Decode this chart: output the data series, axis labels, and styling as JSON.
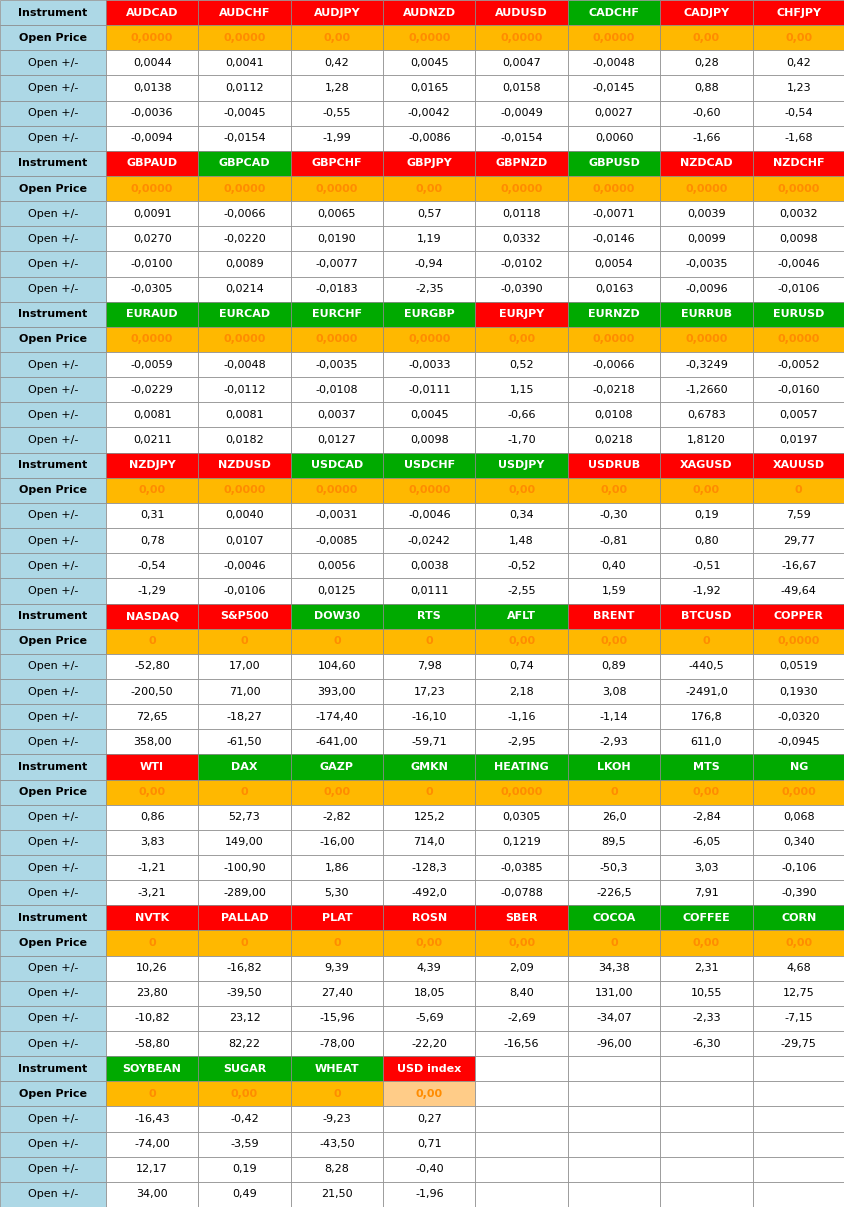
{
  "rows": [
    [
      "Instrument",
      "AUDCAD",
      "AUDCHF",
      "AUDJPY",
      "AUDNZD",
      "AUDUSD",
      "CADCHF",
      "CADJPY",
      "CHFJPY"
    ],
    [
      "Open Price",
      "0,0000",
      "0,0000",
      "0,00",
      "0,0000",
      "0,0000",
      "0,0000",
      "0,00",
      "0,00"
    ],
    [
      "Open +/-",
      "0,0044",
      "0,0041",
      "0,42",
      "0,0045",
      "0,0047",
      "-0,0048",
      "0,28",
      "0,42"
    ],
    [
      "Open +/-",
      "0,0138",
      "0,0112",
      "1,28",
      "0,0165",
      "0,0158",
      "-0,0145",
      "0,88",
      "1,23"
    ],
    [
      "Open +/-",
      "-0,0036",
      "-0,0045",
      "-0,55",
      "-0,0042",
      "-0,0049",
      "0,0027",
      "-0,60",
      "-0,54"
    ],
    [
      "Open +/-",
      "-0,0094",
      "-0,0154",
      "-1,99",
      "-0,0086",
      "-0,0154",
      "0,0060",
      "-1,66",
      "-1,68"
    ],
    [
      "Instrument",
      "GBPAUD",
      "GBPCAD",
      "GBPCHF",
      "GBPJPY",
      "GBPNZD",
      "GBPUSD",
      "NZDCAD",
      "NZDCHF"
    ],
    [
      "Open Price",
      "0,0000",
      "0,0000",
      "0,0000",
      "0,00",
      "0,0000",
      "0,0000",
      "0,0000",
      "0,0000"
    ],
    [
      "Open +/-",
      "0,0091",
      "-0,0066",
      "0,0065",
      "0,57",
      "0,0118",
      "-0,0071",
      "0,0039",
      "0,0032"
    ],
    [
      "Open +/-",
      "0,0270",
      "-0,0220",
      "0,0190",
      "1,19",
      "0,0332",
      "-0,0146",
      "0,0099",
      "0,0098"
    ],
    [
      "Open +/-",
      "-0,0100",
      "0,0089",
      "-0,0077",
      "-0,94",
      "-0,0102",
      "0,0054",
      "-0,0035",
      "-0,0046"
    ],
    [
      "Open +/-",
      "-0,0305",
      "0,0214",
      "-0,0183",
      "-2,35",
      "-0,0390",
      "0,0163",
      "-0,0096",
      "-0,0106"
    ],
    [
      "Instrument",
      "EURAUD",
      "EURCAD",
      "EURCHF",
      "EURGBP",
      "EURJPY",
      "EURNZD",
      "EURRUB",
      "EURUSD"
    ],
    [
      "Open Price",
      "0,0000",
      "0,0000",
      "0,0000",
      "0,0000",
      "0,00",
      "0,0000",
      "0,0000",
      "0,0000"
    ],
    [
      "Open +/-",
      "-0,0059",
      "-0,0048",
      "-0,0035",
      "-0,0033",
      "0,52",
      "-0,0066",
      "-0,3249",
      "-0,0052"
    ],
    [
      "Open +/-",
      "-0,0229",
      "-0,0112",
      "-0,0108",
      "-0,0111",
      "1,15",
      "-0,0218",
      "-1,2660",
      "-0,0160"
    ],
    [
      "Open +/-",
      "0,0081",
      "0,0081",
      "0,0037",
      "0,0045",
      "-0,66",
      "0,0108",
      "0,6783",
      "0,0057"
    ],
    [
      "Open +/-",
      "0,0211",
      "0,0182",
      "0,0127",
      "0,0098",
      "-1,70",
      "0,0218",
      "1,8120",
      "0,0197"
    ],
    [
      "Instrument",
      "NZDJPY",
      "NZDUSD",
      "USDCAD",
      "USDCHF",
      "USDJPY",
      "USDRUB",
      "XAGUSD",
      "XAUUSD"
    ],
    [
      "Open Price",
      "0,00",
      "0,0000",
      "0,0000",
      "0,0000",
      "0,00",
      "0,00",
      "0,00",
      "0"
    ],
    [
      "Open +/-",
      "0,31",
      "0,0040",
      "-0,0031",
      "-0,0046",
      "0,34",
      "-0,30",
      "0,19",
      "7,59"
    ],
    [
      "Open +/-",
      "0,78",
      "0,0107",
      "-0,0085",
      "-0,0242",
      "1,48",
      "-0,81",
      "0,80",
      "29,77"
    ],
    [
      "Open +/-",
      "-0,54",
      "-0,0046",
      "0,0056",
      "0,0038",
      "-0,52",
      "0,40",
      "-0,51",
      "-16,67"
    ],
    [
      "Open +/-",
      "-1,29",
      "-0,0106",
      "0,0125",
      "0,0111",
      "-2,55",
      "1,59",
      "-1,92",
      "-49,64"
    ],
    [
      "Instrument",
      "NASDAQ",
      "S&P500",
      "DOW30",
      "RTS",
      "AFLT",
      "BRENT",
      "BTCUSD",
      "COPPER"
    ],
    [
      "Open Price",
      "0",
      "0",
      "0",
      "0",
      "0,00",
      "0,00",
      "0",
      "0,0000"
    ],
    [
      "Open +/-",
      "-52,80",
      "17,00",
      "104,60",
      "7,98",
      "0,74",
      "0,89",
      "-440,5",
      "0,0519"
    ],
    [
      "Open +/-",
      "-200,50",
      "71,00",
      "393,00",
      "17,23",
      "2,18",
      "3,08",
      "-2491,0",
      "0,1930"
    ],
    [
      "Open +/-",
      "72,65",
      "-18,27",
      "-174,40",
      "-16,10",
      "-1,16",
      "-1,14",
      "176,8",
      "-0,0320"
    ],
    [
      "Open +/-",
      "358,00",
      "-61,50",
      "-641,00",
      "-59,71",
      "-2,95",
      "-2,93",
      "611,0",
      "-0,0945"
    ],
    [
      "Instrument",
      "WTI",
      "DAX",
      "GAZP",
      "GMKN",
      "HEATING",
      "LKOH",
      "MTS",
      "NG"
    ],
    [
      "Open Price",
      "0,00",
      "0",
      "0,00",
      "0",
      "0,0000",
      "0",
      "0,00",
      "0,000"
    ],
    [
      "Open +/-",
      "0,86",
      "52,73",
      "-2,82",
      "125,2",
      "0,0305",
      "26,0",
      "-2,84",
      "0,068"
    ],
    [
      "Open +/-",
      "3,83",
      "149,00",
      "-16,00",
      "714,0",
      "0,1219",
      "89,5",
      "-6,05",
      "0,340"
    ],
    [
      "Open +/-",
      "-1,21",
      "-100,90",
      "1,86",
      "-128,3",
      "-0,0385",
      "-50,3",
      "3,03",
      "-0,106"
    ],
    [
      "Open +/-",
      "-3,21",
      "-289,00",
      "5,30",
      "-492,0",
      "-0,0788",
      "-226,5",
      "7,91",
      "-0,390"
    ],
    [
      "Instrument",
      "NVTK",
      "PALLAD",
      "PLAT",
      "ROSN",
      "SBER",
      "COCOA",
      "COFFEE",
      "CORN"
    ],
    [
      "Open Price",
      "0",
      "0",
      "0",
      "0,00",
      "0,00",
      "0",
      "0,00",
      "0,00"
    ],
    [
      "Open +/-",
      "10,26",
      "-16,82",
      "9,39",
      "4,39",
      "2,09",
      "34,38",
      "2,31",
      "4,68"
    ],
    [
      "Open +/-",
      "23,80",
      "-39,50",
      "27,40",
      "18,05",
      "8,40",
      "131,00",
      "10,55",
      "12,75"
    ],
    [
      "Open +/-",
      "-10,82",
      "23,12",
      "-15,96",
      "-5,69",
      "-2,69",
      "-34,07",
      "-2,33",
      "-7,15"
    ],
    [
      "Open +/-",
      "-58,80",
      "82,22",
      "-78,00",
      "-22,20",
      "-16,56",
      "-96,00",
      "-6,30",
      "-29,75"
    ],
    [
      "Instrument",
      "SOYBEAN",
      "SUGAR",
      "WHEAT",
      "USD index",
      "",
      "",
      "",
      ""
    ],
    [
      "Open Price",
      "0",
      "0,00",
      "0",
      "0,00",
      "",
      "",
      "",
      ""
    ],
    [
      "Open +/-",
      "-16,43",
      "-0,42",
      "-9,23",
      "0,27",
      "",
      "",
      "",
      ""
    ],
    [
      "Open +/-",
      "-74,00",
      "-3,59",
      "-43,50",
      "0,71",
      "",
      "",
      "",
      ""
    ],
    [
      "Open +/-",
      "12,17",
      "0,19",
      "8,28",
      "-0,40",
      "",
      "",
      "",
      ""
    ],
    [
      "Open +/-",
      "34,00",
      "0,49",
      "21,50",
      "-1,96",
      "",
      "",
      "",
      ""
    ]
  ],
  "cell_colors": {
    "0,0": "#ADD8E6",
    "0,1": "#FF0000",
    "0,2": "#FF0000",
    "0,3": "#FF0000",
    "0,4": "#FF0000",
    "0,5": "#FF0000",
    "0,6": "#00AA00",
    "0,7": "#FF0000",
    "0,8": "#FF0000",
    "1,0": "#ADD8E6",
    "1,1": "#FFB800",
    "1,2": "#FFB800",
    "1,3": "#FFB800",
    "1,4": "#FFB800",
    "1,5": "#FFB800",
    "1,6": "#FFB800",
    "1,7": "#FFB800",
    "1,8": "#FFB800",
    "2,0": "#ADD8E6",
    "2,1": "#FFFFFF",
    "2,2": "#FFFFFF",
    "2,3": "#FFFFFF",
    "2,4": "#FFFFFF",
    "2,5": "#FFFFFF",
    "2,6": "#FFFFFF",
    "2,7": "#FFFFFF",
    "2,8": "#FFFFFF",
    "3,0": "#ADD8E6",
    "3,1": "#FFFFFF",
    "3,2": "#FFFFFF",
    "3,3": "#FFFFFF",
    "3,4": "#FFFFFF",
    "3,5": "#FFFFFF",
    "3,6": "#FFFFFF",
    "3,7": "#FFFFFF",
    "3,8": "#FFFFFF",
    "4,0": "#ADD8E6",
    "4,1": "#FFFFFF",
    "4,2": "#FFFFFF",
    "4,3": "#FFFFFF",
    "4,4": "#FFFFFF",
    "4,5": "#FFFFFF",
    "4,6": "#FFFFFF",
    "4,7": "#FFFFFF",
    "4,8": "#FFFFFF",
    "5,0": "#ADD8E6",
    "5,1": "#FFFFFF",
    "5,2": "#FFFFFF",
    "5,3": "#FFFFFF",
    "5,4": "#FFFFFF",
    "5,5": "#FFFFFF",
    "5,6": "#FFFFFF",
    "5,7": "#FFFFFF",
    "5,8": "#FFFFFF",
    "6,0": "#ADD8E6",
    "6,1": "#FF0000",
    "6,2": "#00AA00",
    "6,3": "#FF0000",
    "6,4": "#FF0000",
    "6,5": "#FF0000",
    "6,6": "#00AA00",
    "6,7": "#FF0000",
    "6,8": "#FF0000",
    "7,0": "#ADD8E6",
    "7,1": "#FFB800",
    "7,2": "#FFB800",
    "7,3": "#FFB800",
    "7,4": "#FFB800",
    "7,5": "#FFB800",
    "7,6": "#FFB800",
    "7,7": "#FFB800",
    "7,8": "#FFB800",
    "8,0": "#ADD8E6",
    "8,1": "#FFFFFF",
    "8,2": "#FFFFFF",
    "8,3": "#FFFFFF",
    "8,4": "#FFFFFF",
    "8,5": "#FFFFFF",
    "8,6": "#FFFFFF",
    "8,7": "#FFFFFF",
    "8,8": "#FFFFFF",
    "9,0": "#ADD8E6",
    "9,1": "#FFFFFF",
    "9,2": "#FFFFFF",
    "9,3": "#FFFFFF",
    "9,4": "#FFFFFF",
    "9,5": "#FFFFFF",
    "9,6": "#FFFFFF",
    "9,7": "#FFFFFF",
    "9,8": "#FFFFFF",
    "10,0": "#ADD8E6",
    "10,1": "#FFFFFF",
    "10,2": "#FFFFFF",
    "10,3": "#FFFFFF",
    "10,4": "#FFFFFF",
    "10,5": "#FFFFFF",
    "10,6": "#FFFFFF",
    "10,7": "#FFFFFF",
    "10,8": "#FFFFFF",
    "11,0": "#ADD8E6",
    "11,1": "#FFFFFF",
    "11,2": "#FFFFFF",
    "11,3": "#FFFFFF",
    "11,4": "#FFFFFF",
    "11,5": "#FFFFFF",
    "11,6": "#FFFFFF",
    "11,7": "#FFFFFF",
    "11,8": "#FFFFFF",
    "12,0": "#ADD8E6",
    "12,1": "#00AA00",
    "12,2": "#00AA00",
    "12,3": "#00AA00",
    "12,4": "#00AA00",
    "12,5": "#FF0000",
    "12,6": "#00AA00",
    "12,7": "#00AA00",
    "12,8": "#00AA00",
    "13,0": "#ADD8E6",
    "13,1": "#FFB800",
    "13,2": "#FFB800",
    "13,3": "#FFB800",
    "13,4": "#FFB800",
    "13,5": "#FFB800",
    "13,6": "#FFB800",
    "13,7": "#FFB800",
    "13,8": "#FFB800",
    "14,0": "#ADD8E6",
    "14,1": "#FFFFFF",
    "14,2": "#FFFFFF",
    "14,3": "#FFFFFF",
    "14,4": "#FFFFFF",
    "14,5": "#FFFFFF",
    "14,6": "#FFFFFF",
    "14,7": "#FFFFFF",
    "14,8": "#FFFFFF",
    "15,0": "#ADD8E6",
    "15,1": "#FFFFFF",
    "15,2": "#FFFFFF",
    "15,3": "#FFFFFF",
    "15,4": "#FFFFFF",
    "15,5": "#FFFFFF",
    "15,6": "#FFFFFF",
    "15,7": "#FFFFFF",
    "15,8": "#FFFFFF",
    "16,0": "#ADD8E6",
    "16,1": "#FFFFFF",
    "16,2": "#FFFFFF",
    "16,3": "#FFFFFF",
    "16,4": "#FFFFFF",
    "16,5": "#FFFFFF",
    "16,6": "#FFFFFF",
    "16,7": "#FFFFFF",
    "16,8": "#FFFFFF",
    "17,0": "#ADD8E6",
    "17,1": "#FFFFFF",
    "17,2": "#FFFFFF",
    "17,3": "#FFFFFF",
    "17,4": "#FFFFFF",
    "17,5": "#FFFFFF",
    "17,6": "#FFFFFF",
    "17,7": "#FFFFFF",
    "17,8": "#FFFFFF",
    "18,0": "#ADD8E6",
    "18,1": "#FF0000",
    "18,2": "#FF0000",
    "18,3": "#00AA00",
    "18,4": "#00AA00",
    "18,5": "#00AA00",
    "18,6": "#FF0000",
    "18,7": "#FF0000",
    "18,8": "#FF0000",
    "19,0": "#ADD8E6",
    "19,1": "#FFB800",
    "19,2": "#FFB800",
    "19,3": "#FFB800",
    "19,4": "#FFB800",
    "19,5": "#FFB800",
    "19,6": "#FFB800",
    "19,7": "#FFB800",
    "19,8": "#FFB800",
    "20,0": "#ADD8E6",
    "20,1": "#FFFFFF",
    "20,2": "#FFFFFF",
    "20,3": "#FFFFFF",
    "20,4": "#FFFFFF",
    "20,5": "#FFFFFF",
    "20,6": "#FFFFFF",
    "20,7": "#FFFFFF",
    "20,8": "#FFFFFF",
    "21,0": "#ADD8E6",
    "21,1": "#FFFFFF",
    "21,2": "#FFFFFF",
    "21,3": "#FFFFFF",
    "21,4": "#FFFFFF",
    "21,5": "#FFFFFF",
    "21,6": "#FFFFFF",
    "21,7": "#FFFFFF",
    "21,8": "#FFFFFF",
    "22,0": "#ADD8E6",
    "22,1": "#FFFFFF",
    "22,2": "#FFFFFF",
    "22,3": "#FFFFFF",
    "22,4": "#FFFFFF",
    "22,5": "#FFFFFF",
    "22,6": "#FFFFFF",
    "22,7": "#FFFFFF",
    "22,8": "#FFFFFF",
    "23,0": "#ADD8E6",
    "23,1": "#FFFFFF",
    "23,2": "#FFFFFF",
    "23,3": "#FFFFFF",
    "23,4": "#FFFFFF",
    "23,5": "#FFFFFF",
    "23,6": "#FFFFFF",
    "23,7": "#FFFFFF",
    "23,8": "#FFFFFF",
    "24,0": "#ADD8E6",
    "24,1": "#FF0000",
    "24,2": "#FF0000",
    "24,3": "#00AA00",
    "24,4": "#00AA00",
    "24,5": "#00AA00",
    "24,6": "#FF0000",
    "24,7": "#FF0000",
    "24,8": "#FF0000",
    "25,0": "#ADD8E6",
    "25,1": "#FFB800",
    "25,2": "#FFB800",
    "25,3": "#FFB800",
    "25,4": "#FFB800",
    "25,5": "#FFB800",
    "25,6": "#FFB800",
    "25,7": "#FFB800",
    "25,8": "#FFB800",
    "26,0": "#ADD8E6",
    "26,1": "#FFFFFF",
    "26,2": "#FFFFFF",
    "26,3": "#FFFFFF",
    "26,4": "#FFFFFF",
    "26,5": "#FFFFFF",
    "26,6": "#FFFFFF",
    "26,7": "#FFFFFF",
    "26,8": "#FFFFFF",
    "27,0": "#ADD8E6",
    "27,1": "#FFFFFF",
    "27,2": "#FFFFFF",
    "27,3": "#FFFFFF",
    "27,4": "#FFFFFF",
    "27,5": "#FFFFFF",
    "27,6": "#FFFFFF",
    "27,7": "#FFFFFF",
    "27,8": "#FFFFFF",
    "28,0": "#ADD8E6",
    "28,1": "#FFFFFF",
    "28,2": "#FFFFFF",
    "28,3": "#FFFFFF",
    "28,4": "#FFFFFF",
    "28,5": "#FFFFFF",
    "28,6": "#FFFFFF",
    "28,7": "#FFFFFF",
    "28,8": "#FFFFFF",
    "29,0": "#ADD8E6",
    "29,1": "#FFFFFF",
    "29,2": "#FFFFFF",
    "29,3": "#FFFFFF",
    "29,4": "#FFFFFF",
    "29,5": "#FFFFFF",
    "29,6": "#FFFFFF",
    "29,7": "#FFFFFF",
    "29,8": "#FFFFFF",
    "30,0": "#ADD8E6",
    "30,1": "#FF0000",
    "30,2": "#00AA00",
    "30,3": "#00AA00",
    "30,4": "#00AA00",
    "30,5": "#00AA00",
    "30,6": "#00AA00",
    "30,7": "#00AA00",
    "30,8": "#00AA00",
    "31,0": "#ADD8E6",
    "31,1": "#FFB800",
    "31,2": "#FFB800",
    "31,3": "#FFB800",
    "31,4": "#FFB800",
    "31,5": "#FFB800",
    "31,6": "#FFB800",
    "31,7": "#FFB800",
    "31,8": "#FFB800",
    "32,0": "#ADD8E6",
    "32,1": "#FFFFFF",
    "32,2": "#FFFFFF",
    "32,3": "#FFFFFF",
    "32,4": "#FFFFFF",
    "32,5": "#FFFFFF",
    "32,6": "#FFFFFF",
    "32,7": "#FFFFFF",
    "32,8": "#FFFFFF",
    "33,0": "#ADD8E6",
    "33,1": "#FFFFFF",
    "33,2": "#FFFFFF",
    "33,3": "#FFFFFF",
    "33,4": "#FFFFFF",
    "33,5": "#FFFFFF",
    "33,6": "#FFFFFF",
    "33,7": "#FFFFFF",
    "33,8": "#FFFFFF",
    "34,0": "#ADD8E6",
    "34,1": "#FFFFFF",
    "34,2": "#FFFFFF",
    "34,3": "#FFFFFF",
    "34,4": "#FFFFFF",
    "34,5": "#FFFFFF",
    "34,6": "#FFFFFF",
    "34,7": "#FFFFFF",
    "34,8": "#FFFFFF",
    "35,0": "#ADD8E6",
    "35,1": "#FFFFFF",
    "35,2": "#FFFFFF",
    "35,3": "#FFFFFF",
    "35,4": "#FFFFFF",
    "35,5": "#FFFFFF",
    "35,6": "#FFFFFF",
    "35,7": "#FFFFFF",
    "35,8": "#FFFFFF",
    "36,0": "#ADD8E6",
    "36,1": "#FF0000",
    "36,2": "#FF0000",
    "36,3": "#FF0000",
    "36,4": "#FF0000",
    "36,5": "#FF0000",
    "36,6": "#00AA00",
    "36,7": "#00AA00",
    "36,8": "#00AA00",
    "37,0": "#ADD8E6",
    "37,1": "#FFB800",
    "37,2": "#FFB800",
    "37,3": "#FFB800",
    "37,4": "#FFB800",
    "37,5": "#FFB800",
    "37,6": "#FFB800",
    "37,7": "#FFB800",
    "37,8": "#FFB800",
    "38,0": "#ADD8E6",
    "38,1": "#FFFFFF",
    "38,2": "#FFFFFF",
    "38,3": "#FFFFFF",
    "38,4": "#FFFFFF",
    "38,5": "#FFFFFF",
    "38,6": "#FFFFFF",
    "38,7": "#FFFFFF",
    "38,8": "#FFFFFF",
    "39,0": "#ADD8E6",
    "39,1": "#FFFFFF",
    "39,2": "#FFFFFF",
    "39,3": "#FFFFFF",
    "39,4": "#FFFFFF",
    "39,5": "#FFFFFF",
    "39,6": "#FFFFFF",
    "39,7": "#FFFFFF",
    "39,8": "#FFFFFF",
    "40,0": "#ADD8E6",
    "40,1": "#FFFFFF",
    "40,2": "#FFFFFF",
    "40,3": "#FFFFFF",
    "40,4": "#FFFFFF",
    "40,5": "#FFFFFF",
    "40,6": "#FFFFFF",
    "40,7": "#FFFFFF",
    "40,8": "#FFFFFF",
    "41,0": "#ADD8E6",
    "41,1": "#FFFFFF",
    "41,2": "#FFFFFF",
    "41,3": "#FFFFFF",
    "41,4": "#FFFFFF",
    "41,5": "#FFFFFF",
    "41,6": "#FFFFFF",
    "41,7": "#FFFFFF",
    "41,8": "#FFFFFF",
    "42,0": "#ADD8E6",
    "42,1": "#00AA00",
    "42,2": "#00AA00",
    "42,3": "#00AA00",
    "42,4": "#FF0000",
    "42,5": "#FFFFFF",
    "42,6": "#FFFFFF",
    "42,7": "#FFFFFF",
    "42,8": "#FFFFFF",
    "43,0": "#ADD8E6",
    "43,1": "#FFB800",
    "43,2": "#FFB800",
    "43,3": "#FFB800",
    "43,4": "#FFCC88",
    "43,5": "#FFFFFF",
    "43,6": "#FFFFFF",
    "43,7": "#FFFFFF",
    "43,8": "#FFFFFF",
    "44,0": "#ADD8E6",
    "44,1": "#FFFFFF",
    "44,2": "#FFFFFF",
    "44,3": "#FFFFFF",
    "44,4": "#FFFFFF",
    "44,5": "#FFFFFF",
    "44,6": "#FFFFFF",
    "44,7": "#FFFFFF",
    "44,8": "#FFFFFF",
    "45,0": "#ADD8E6",
    "45,1": "#FFFFFF",
    "45,2": "#FFFFFF",
    "45,3": "#FFFFFF",
    "45,4": "#FFFFFF",
    "45,5": "#FFFFFF",
    "45,6": "#FFFFFF",
    "45,7": "#FFFFFF",
    "45,8": "#FFFFFF",
    "46,0": "#ADD8E6",
    "46,1": "#FFFFFF",
    "46,2": "#FFFFFF",
    "46,3": "#FFFFFF",
    "46,4": "#FFFFFF",
    "46,5": "#FFFFFF",
    "46,6": "#FFFFFF",
    "46,7": "#FFFFFF",
    "46,8": "#FFFFFF",
    "47,0": "#ADD8E6",
    "47,1": "#FFFFFF",
    "47,2": "#FFFFFF",
    "47,3": "#FFFFFF",
    "47,4": "#FFFFFF",
    "47,5": "#FFFFFF",
    "47,6": "#FFFFFF",
    "47,7": "#FFFFFF",
    "47,8": "#FFFFFF"
  },
  "font_size": 8.0,
  "border_color": "#888888",
  "fig_width": 8.45,
  "fig_height": 12.07
}
